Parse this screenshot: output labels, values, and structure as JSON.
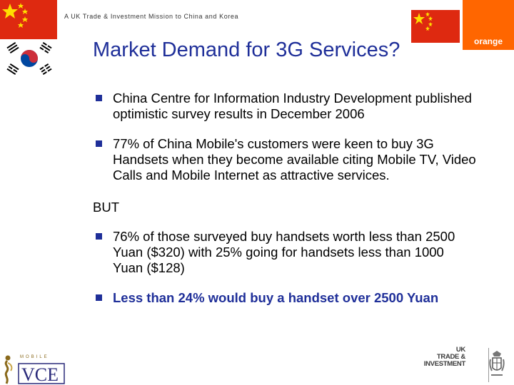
{
  "header": {
    "mission": "A UK Trade & Investment Mission to China and Korea",
    "orange_logo": "orange"
  },
  "slide": {
    "title": "Market Demand for 3G Services?",
    "bullets": [
      "China Centre for Information Industry Development published optimistic survey results in December 2006",
      "77% of China Mobile's customers were keen to buy 3G Handsets when they become available citing Mobile TV, Video Calls and Mobile Internet as attractive services."
    ],
    "but": "BUT",
    "bullets_after": [
      "76% of those surveyed buy handsets worth less than 2500 Yuan ($320) with 25% going for handsets less than 1000 Yuan ($128)",
      "Less than 24% would buy a handset over 2500 Yuan"
    ]
  },
  "footer": {
    "vce_logo": "VCE",
    "vce_mobile": "MOBILE",
    "ukti_lines": [
      "UK",
      "TRADE &",
      "INVESTMENT"
    ]
  },
  "colors": {
    "title": "#1f2f99",
    "bullet": "#1f2f99",
    "orange": "#ff6600",
    "china_red": "#de2910",
    "china_star": "#ffde00",
    "korea_red": "#cd2e3a",
    "korea_blue": "#0047a0"
  }
}
